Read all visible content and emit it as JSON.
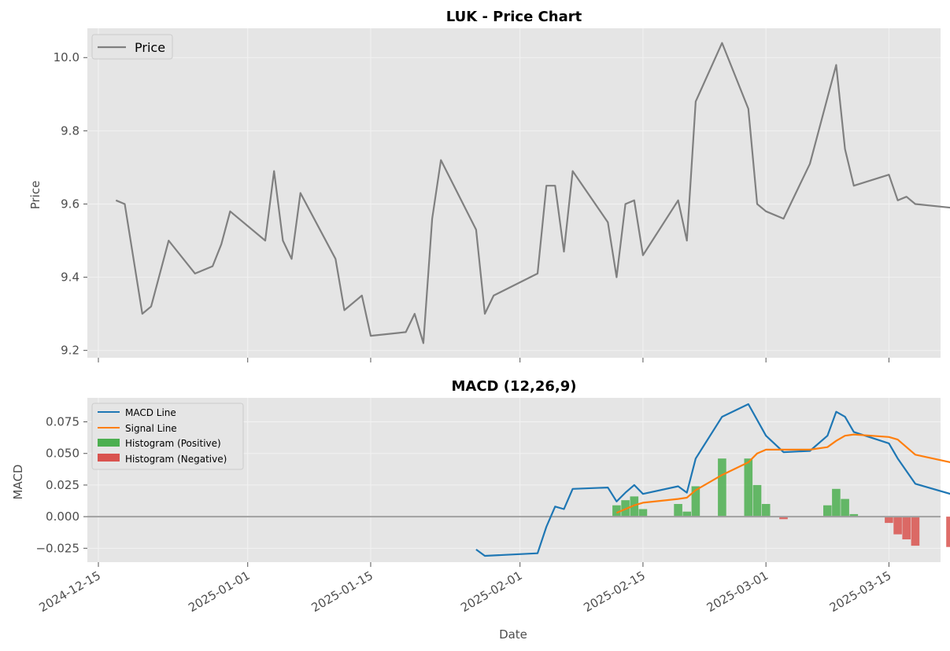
{
  "chart_data": [
    {
      "type": "line",
      "title": "LUK - Price Chart",
      "xlabel": "",
      "ylabel": "Price",
      "ylim": [
        9.18,
        10.08
      ],
      "yticks": [
        "9.2",
        "9.4",
        "9.6",
        "9.8",
        "10.0"
      ],
      "grid": true,
      "legend_position": "top-left",
      "series": [
        {
          "name": "Price",
          "color": "#808080",
          "points": [
            [
              "2024-12-17",
              9.61
            ],
            [
              "2024-12-18",
              9.6
            ],
            [
              "2024-12-20",
              9.3
            ],
            [
              "2024-12-21",
              9.32
            ],
            [
              "2024-12-23",
              9.5
            ],
            [
              "2024-12-26",
              9.41
            ],
            [
              "2024-12-28",
              9.43
            ],
            [
              "2024-12-29",
              9.49
            ],
            [
              "2024-12-30",
              9.58
            ],
            [
              "2025-01-03",
              9.5
            ],
            [
              "2025-01-04",
              9.69
            ],
            [
              "2025-01-05",
              9.5
            ],
            [
              "2025-01-06",
              9.45
            ],
            [
              "2025-01-07",
              9.63
            ],
            [
              "2025-01-11",
              9.45
            ],
            [
              "2025-01-12",
              9.31
            ],
            [
              "2025-01-14",
              9.35
            ],
            [
              "2025-01-15",
              9.24
            ],
            [
              "2025-01-19",
              9.25
            ],
            [
              "2025-01-20",
              9.3
            ],
            [
              "2025-01-21",
              9.22
            ],
            [
              "2025-01-22",
              9.56
            ],
            [
              "2025-01-23",
              9.72
            ],
            [
              "2025-01-27",
              9.53
            ],
            [
              "2025-01-28",
              9.3
            ],
            [
              "2025-01-29",
              9.35
            ],
            [
              "2025-02-03",
              9.41
            ],
            [
              "2025-02-04",
              9.65
            ],
            [
              "2025-02-05",
              9.65
            ],
            [
              "2025-02-06",
              9.47
            ],
            [
              "2025-02-07",
              9.69
            ],
            [
              "2025-02-11",
              9.55
            ],
            [
              "2025-02-12",
              9.4
            ],
            [
              "2025-02-13",
              9.6
            ],
            [
              "2025-02-14",
              9.61
            ],
            [
              "2025-02-15",
              9.46
            ],
            [
              "2025-02-19",
              9.61
            ],
            [
              "2025-02-20",
              9.5
            ],
            [
              "2025-02-21",
              9.88
            ],
            [
              "2025-02-24",
              10.04
            ],
            [
              "2025-02-27",
              9.86
            ],
            [
              "2025-02-28",
              9.6
            ],
            [
              "2025-03-01",
              9.58
            ],
            [
              "2025-03-03",
              9.56
            ],
            [
              "2025-03-06",
              9.71
            ],
            [
              "2025-03-09",
              9.98
            ],
            [
              "2025-03-10",
              9.75
            ],
            [
              "2025-03-11",
              9.65
            ],
            [
              "2025-03-15",
              9.68
            ],
            [
              "2025-03-16",
              9.61
            ],
            [
              "2025-03-17",
              9.62
            ],
            [
              "2025-03-18",
              9.6
            ],
            [
              "2025-03-22",
              9.59
            ]
          ]
        }
      ]
    },
    {
      "type": "line",
      "title": "MACD (12,26,9)",
      "xlabel": "Date",
      "ylabel": "MACD",
      "ylim": [
        -0.036,
        0.094
      ],
      "yticks": [
        "−0.025",
        "0.000",
        "0.025",
        "0.050",
        "0.075"
      ],
      "xticks": [
        "2024-12-15",
        "2025-01-01",
        "2025-01-15",
        "2025-02-01",
        "2025-02-15",
        "2025-03-01",
        "2025-03-15"
      ],
      "grid": true,
      "legend_position": "top-left",
      "zero_line": true,
      "series": [
        {
          "name": "MACD Line",
          "color": "#1f77b4",
          "points": [
            [
              "2025-01-27",
              -0.026
            ],
            [
              "2025-01-28",
              -0.031
            ],
            [
              "2025-02-03",
              -0.029
            ],
            [
              "2025-02-04",
              -0.008
            ],
            [
              "2025-02-05",
              0.008
            ],
            [
              "2025-02-06",
              0.006
            ],
            [
              "2025-02-07",
              0.022
            ],
            [
              "2025-02-11",
              0.023
            ],
            [
              "2025-02-12",
              0.012
            ],
            [
              "2025-02-13",
              0.019
            ],
            [
              "2025-02-14",
              0.025
            ],
            [
              "2025-02-15",
              0.018
            ],
            [
              "2025-02-19",
              0.024
            ],
            [
              "2025-02-20",
              0.019
            ],
            [
              "2025-02-21",
              0.046
            ],
            [
              "2025-02-24",
              0.079
            ],
            [
              "2025-02-27",
              0.089
            ],
            [
              "2025-03-01",
              0.064
            ],
            [
              "2025-03-03",
              0.051
            ],
            [
              "2025-03-06",
              0.052
            ],
            [
              "2025-03-08",
              0.064
            ],
            [
              "2025-03-09",
              0.083
            ],
            [
              "2025-03-10",
              0.079
            ],
            [
              "2025-03-11",
              0.067
            ],
            [
              "2025-03-15",
              0.058
            ],
            [
              "2025-03-16",
              0.046
            ],
            [
              "2025-03-18",
              0.026
            ],
            [
              "2025-03-22",
              0.018
            ]
          ]
        },
        {
          "name": "Signal Line",
          "color": "#ff7f0e",
          "points": [
            [
              "2025-02-12",
              0.003
            ],
            [
              "2025-02-13",
              0.006
            ],
            [
              "2025-02-14",
              0.009
            ],
            [
              "2025-02-15",
              0.011
            ],
            [
              "2025-02-19",
              0.014
            ],
            [
              "2025-02-20",
              0.015
            ],
            [
              "2025-02-21",
              0.021
            ],
            [
              "2025-02-24",
              0.033
            ],
            [
              "2025-02-27",
              0.043
            ],
            [
              "2025-02-28",
              0.05
            ],
            [
              "2025-03-01",
              0.053
            ],
            [
              "2025-03-03",
              0.053
            ],
            [
              "2025-03-06",
              0.053
            ],
            [
              "2025-03-08",
              0.055
            ],
            [
              "2025-03-09",
              0.06
            ],
            [
              "2025-03-10",
              0.064
            ],
            [
              "2025-03-11",
              0.065
            ],
            [
              "2025-03-15",
              0.063
            ],
            [
              "2025-03-16",
              0.061
            ],
            [
              "2025-03-18",
              0.049
            ],
            [
              "2025-03-22",
              0.043
            ]
          ]
        },
        {
          "name": "Histogram (Positive)",
          "color": "#4caf50",
          "kind": "bar",
          "points": [
            [
              "2025-02-12",
              0.009
            ],
            [
              "2025-02-13",
              0.013
            ],
            [
              "2025-02-14",
              0.016
            ],
            [
              "2025-02-15",
              0.006
            ],
            [
              "2025-02-19",
              0.01
            ],
            [
              "2025-02-20",
              0.004
            ],
            [
              "2025-02-21",
              0.024
            ],
            [
              "2025-02-24",
              0.046
            ],
            [
              "2025-02-27",
              0.046
            ],
            [
              "2025-02-28",
              0.025
            ],
            [
              "2025-03-01",
              0.01
            ],
            [
              "2025-03-08",
              0.009
            ],
            [
              "2025-03-09",
              0.022
            ],
            [
              "2025-03-10",
              0.014
            ],
            [
              "2025-03-11",
              0.002
            ]
          ]
        },
        {
          "name": "Histogram (Negative)",
          "color": "#d9534f",
          "kind": "bar",
          "points": [
            [
              "2025-03-03",
              -0.002
            ],
            [
              "2025-03-15",
              -0.005
            ],
            [
              "2025-03-16",
              -0.014
            ],
            [
              "2025-03-17",
              -0.018
            ],
            [
              "2025-03-18",
              -0.023
            ],
            [
              "2025-03-22",
              -0.024
            ]
          ]
        }
      ]
    }
  ]
}
